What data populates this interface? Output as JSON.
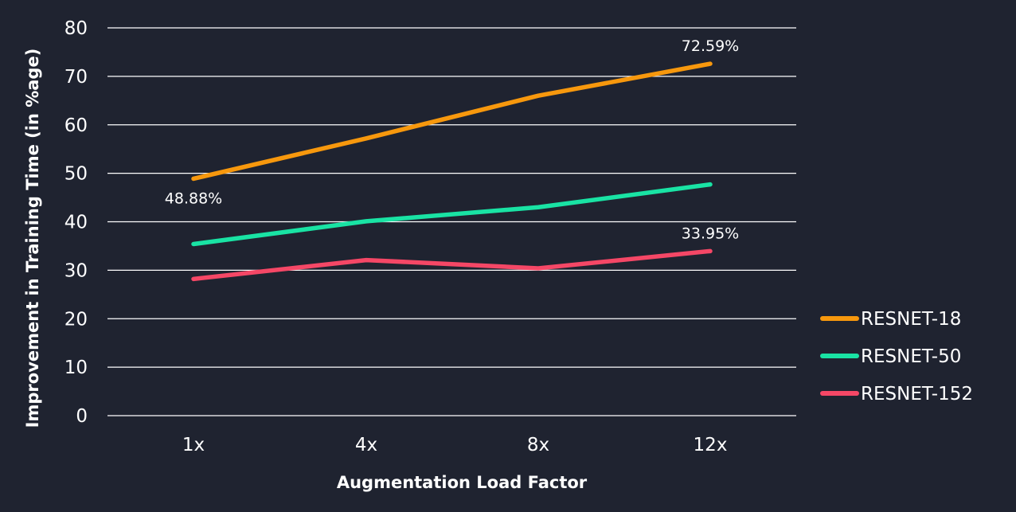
{
  "chart_data": {
    "type": "line",
    "categories": [
      "1x",
      "4x",
      "8x",
      "12x"
    ],
    "xlabel": "Augmentation Load Factor",
    "ylabel": "Improvement in Training Time (in %age)",
    "ylim": [
      0,
      80
    ],
    "yticks": [
      0,
      10,
      20,
      30,
      40,
      50,
      60,
      70,
      80
    ],
    "grid": true,
    "legend_position": "right",
    "series": [
      {
        "name": "RESNET-18",
        "color": "#f7980d",
        "values": [
          48.88,
          57.2,
          66,
          72.59
        ]
      },
      {
        "name": "RESNET-50",
        "color": "#19e3a4",
        "values": [
          35.4,
          40.1,
          43,
          47.7
        ]
      },
      {
        "name": "RESNET-152",
        "color": "#f54766",
        "values": [
          28.2,
          32.1,
          30.4,
          33.95
        ]
      }
    ],
    "annotations": [
      {
        "series": 0,
        "index": 0,
        "text": "48.88%",
        "placement": "below"
      },
      {
        "series": 0,
        "index": 3,
        "text": "72.59%",
        "placement": "above"
      },
      {
        "series": 2,
        "index": 3,
        "text": "33.95%",
        "placement": "above"
      }
    ]
  }
}
